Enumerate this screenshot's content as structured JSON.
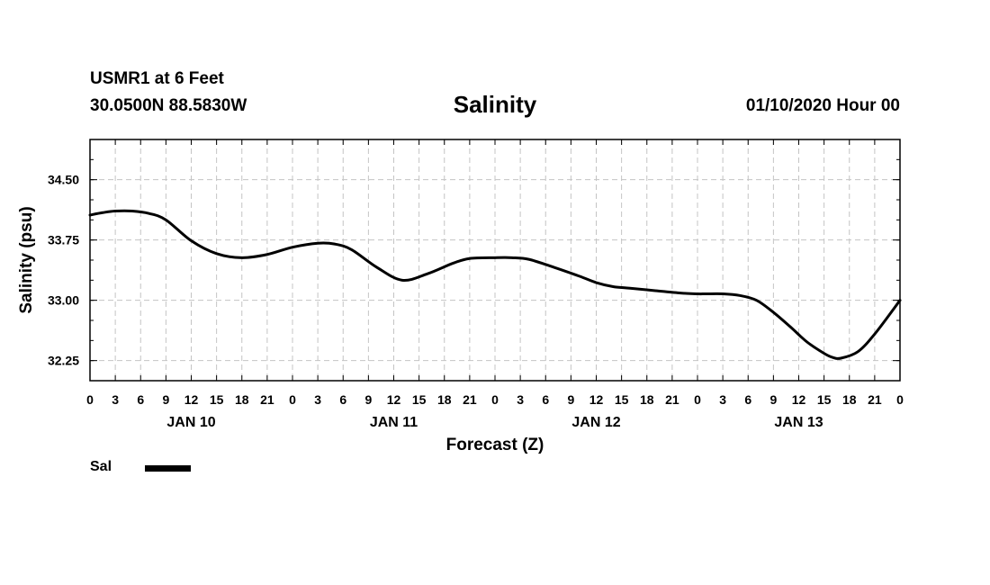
{
  "header": {
    "station": "USMR1 at 6 Feet",
    "coords": "30.0500N 88.5830W",
    "title": "Salinity",
    "datetime": "01/10/2020 Hour 00"
  },
  "chart_data": {
    "type": "line",
    "title": "Salinity",
    "xlabel": "Forecast (Z)",
    "ylabel": "Salinity (psu)",
    "ylim": [
      32.0,
      35.0
    ],
    "yticks": [
      32.25,
      33.0,
      33.75,
      34.5
    ],
    "ytick_labels": [
      "32.25",
      "33.00",
      "33.75",
      "34.50"
    ],
    "x_hours_range": [
      0,
      96
    ],
    "xtick_labels": [
      "0",
      "3",
      "6",
      "9",
      "12",
      "15",
      "18",
      "21",
      "0",
      "3",
      "6",
      "9",
      "12",
      "15",
      "18",
      "21",
      "0",
      "3",
      "6",
      "9",
      "12",
      "15",
      "18",
      "21",
      "0",
      "3",
      "6",
      "9",
      "12",
      "15",
      "18",
      "21",
      "0"
    ],
    "day_labels": [
      {
        "label": "JAN 10",
        "hour": 12
      },
      {
        "label": "JAN 11",
        "hour": 36
      },
      {
        "label": "JAN 12",
        "hour": 60
      },
      {
        "label": "JAN 13",
        "hour": 84
      }
    ],
    "grid": true,
    "series": [
      {
        "name": "Sal",
        "color": "#000000",
        "x": [
          0,
          1.5,
          3,
          5,
          7,
          9,
          12,
          15,
          18,
          21,
          24,
          27,
          29,
          31,
          34,
          37,
          40,
          43,
          45,
          48,
          50,
          52,
          55,
          58,
          60,
          62,
          64,
          67,
          70,
          72,
          73,
          75,
          77,
          79,
          81,
          83,
          85,
          87,
          88,
          89,
          91,
          93,
          96
        ],
        "values": [
          34.06,
          34.09,
          34.11,
          34.11,
          34.08,
          34.0,
          33.74,
          33.58,
          33.53,
          33.57,
          33.66,
          33.71,
          33.7,
          33.63,
          33.41,
          33.25,
          33.33,
          33.46,
          33.52,
          33.53,
          33.53,
          33.51,
          33.41,
          33.3,
          33.22,
          33.17,
          33.15,
          33.12,
          33.09,
          33.08,
          33.08,
          33.08,
          33.06,
          33.0,
          32.85,
          32.67,
          32.48,
          32.34,
          32.29,
          32.28,
          32.36,
          32.58,
          33.0
        ]
      }
    ]
  },
  "legend": {
    "items": [
      {
        "label": "Sal",
        "color": "#000000"
      }
    ]
  }
}
